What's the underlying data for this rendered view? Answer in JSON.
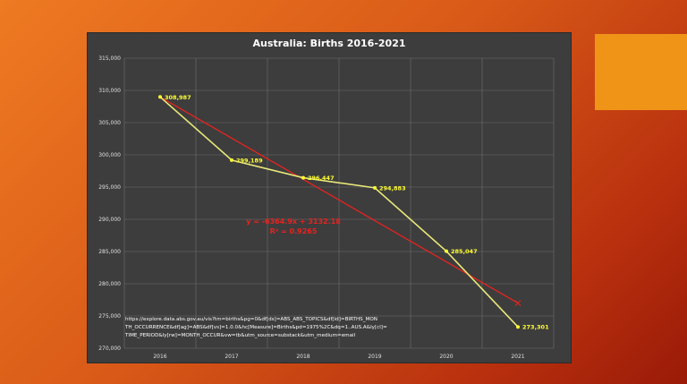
{
  "slide": {
    "accent_color": "#f09418",
    "background_colors": [
      "#ee7a22",
      "#9a1a08"
    ]
  },
  "chart_data": {
    "type": "line",
    "title": "Australia: Births 2016-2021",
    "xlabel": "",
    "ylabel": "",
    "categories": [
      "2016",
      "2017",
      "2018",
      "2019",
      "2020",
      "2021"
    ],
    "x": [
      2016,
      2017,
      2018,
      2019,
      2020,
      2021
    ],
    "ylim": [
      270000,
      315000
    ],
    "yticks": [
      270000,
      275000,
      280000,
      285000,
      290000,
      295000,
      300000,
      305000,
      310000,
      315000
    ],
    "ytick_labels": [
      "270,000",
      "275,000",
      "280,000",
      "285,000",
      "290,000",
      "295,000",
      "300,000",
      "305,000",
      "310,000",
      "315,000"
    ],
    "grid": true,
    "legend": "none",
    "series": [
      {
        "values": [
          308987,
          299189,
          296447,
          294883,
          285047,
          273301
        ],
        "data_labels": [
          "308,987",
          "299,189",
          "296,447",
          "294,883",
          "285,047",
          "273,301"
        ],
        "color": "#e8e87a",
        "marker_color": "#ffff33"
      }
    ],
    "trendline": {
      "type": "linear",
      "color": "#e8231f",
      "start_value": 308987,
      "end_value": 277000,
      "equation": "y = -6364.9x + 3132.18",
      "r_squared": "R² = 0.9265"
    },
    "source_text": [
      "https://explore.data.abs.gov.au/vis?tm=births&pg=0&df[ds]=ABS_ABS_TOPICS&df[id]=BIRTHS_MON",
      "TH_OCCURRENCE&df[ag]=ABS&df[vs]=1.0.0&hc[Measure]=Births&pd=1975%2C&dq=1..AUS.A&ly[cl]=",
      "TIME_PERIOD&ly[rw]=MONTH_OCCUR&vw=tb&utm_source=substack&utm_medium=email"
    ]
  }
}
